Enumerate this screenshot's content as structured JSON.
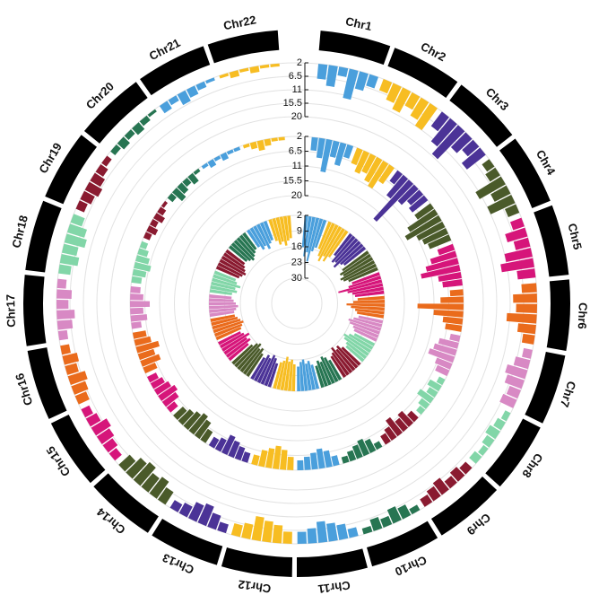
{
  "chart_data": {
    "type": "circular-manhattan",
    "chromosomes": [
      "Chr1",
      "Chr2",
      "Chr3",
      "Chr4",
      "Chr5",
      "Chr6",
      "Chr7",
      "Chr8",
      "Chr9",
      "Chr10",
      "Chr11",
      "Chr12",
      "Chr13",
      "Chr14",
      "Chr15",
      "Chr16",
      "Chr17",
      "Chr18",
      "Chr19",
      "Chr20",
      "Chr21",
      "Chr22"
    ],
    "colors": [
      "#4a9fdc",
      "#f7bd22",
      "#4b3397",
      "#4a5a2a",
      "#d6157a",
      "#ea6b1c",
      "#d889c4",
      "#82d6a8",
      "#8a1a30",
      "#277552",
      "#4a9fdc",
      "#f7bd22",
      "#4b3397",
      "#4a5a2a",
      "#d6157a",
      "#ea6b1c",
      "#d889c4",
      "#82d6a8",
      "#8a1a30",
      "#277552",
      "#4a9fdc",
      "#f7bd22"
    ],
    "grid": true,
    "rings": [
      {
        "ylim": [
          2,
          20
        ],
        "yticks": [
          2,
          6.5,
          11,
          15.5,
          20
        ],
        "values": [
          [
            7,
            9,
            5,
            12,
            8,
            6
          ],
          [
            6,
            8,
            10,
            7,
            9,
            11
          ],
          [
            8,
            12,
            15,
            9,
            7,
            10
          ],
          [
            5,
            6,
            12,
            8,
            11,
            6
          ],
          [
            6,
            9,
            7,
            11,
            13,
            8
          ],
          [
            7,
            10,
            9,
            12,
            8,
            6
          ],
          [
            5,
            7,
            9,
            8,
            6,
            7
          ],
          [
            4,
            5,
            6,
            5,
            4,
            5
          ],
          [
            5,
            6,
            5,
            7,
            6,
            5
          ],
          [
            4,
            6,
            7,
            5,
            6,
            4
          ],
          [
            5,
            7,
            8,
            9,
            7,
            6
          ],
          [
            6,
            8,
            9,
            10,
            7,
            6
          ],
          [
            5,
            7,
            9,
            8,
            6,
            5
          ],
          [
            7,
            9,
            8,
            10,
            9,
            7
          ],
          [
            5,
            6,
            7,
            8,
            6,
            5
          ],
          [
            6,
            7,
            8,
            6,
            7,
            5
          ],
          [
            5,
            7,
            8,
            6,
            7,
            5
          ],
          [
            6,
            8,
            7,
            9,
            8,
            6
          ],
          [
            5,
            6,
            7,
            6,
            5,
            4
          ],
          [
            4,
            5,
            4,
            5,
            4,
            3
          ],
          [
            5,
            4,
            6,
            5,
            4,
            3
          ],
          [
            3,
            4,
            3,
            4,
            3,
            3
          ]
        ]
      },
      {
        "ylim": [
          2,
          20
        ],
        "yticks": [
          2,
          6.5,
          11,
          15.5,
          20
        ],
        "values": [
          [
            6,
            8,
            12,
            7,
            9,
            6
          ],
          [
            7,
            9,
            8,
            10,
            11,
            8
          ],
          [
            6,
            10,
            18,
            9,
            7,
            8
          ],
          [
            8,
            12,
            14,
            11,
            10,
            9
          ],
          [
            7,
            10,
            12,
            14,
            9,
            8
          ],
          [
            6,
            9,
            16,
            11,
            8,
            7
          ],
          [
            5,
            8,
            9,
            10,
            7,
            6
          ],
          [
            4,
            6,
            5,
            7,
            5,
            4
          ],
          [
            5,
            7,
            6,
            8,
            6,
            5
          ],
          [
            4,
            6,
            7,
            6,
            5,
            4
          ],
          [
            5,
            7,
            8,
            7,
            6,
            5
          ],
          [
            6,
            8,
            9,
            8,
            7,
            5
          ],
          [
            5,
            6,
            7,
            8,
            6,
            5
          ],
          [
            6,
            8,
            9,
            8,
            7,
            6
          ],
          [
            5,
            7,
            8,
            7,
            6,
            5
          ],
          [
            6,
            8,
            7,
            9,
            7,
            6
          ],
          [
            5,
            7,
            6,
            8,
            6,
            5
          ],
          [
            5,
            6,
            7,
            6,
            5,
            4
          ],
          [
            4,
            5,
            4,
            5,
            4,
            3
          ],
          [
            4,
            6,
            5,
            4,
            5,
            3
          ],
          [
            3,
            4,
            3,
            4,
            3,
            3
          ],
          [
            3,
            4,
            5,
            4,
            3,
            3
          ]
        ]
      },
      {
        "ylim": [
          2,
          30
        ],
        "yticks": [
          2,
          9,
          16,
          23,
          30
        ],
        "values": [
          [
            16,
            20,
            18,
            22,
            17,
            15
          ],
          [
            15,
            18,
            20,
            17,
            19,
            16
          ],
          [
            14,
            17,
            16,
            18,
            15,
            14
          ],
          [
            16,
            18,
            17,
            19,
            18,
            16
          ],
          [
            15,
            17,
            22,
            18,
            16,
            15
          ],
          [
            14,
            16,
            19,
            17,
            15,
            14
          ],
          [
            13,
            15,
            17,
            16,
            14,
            13
          ],
          [
            12,
            14,
            16,
            15,
            13,
            12
          ],
          [
            13,
            15,
            14,
            16,
            14,
            13
          ],
          [
            12,
            14,
            15,
            13,
            14,
            12
          ],
          [
            13,
            15,
            14,
            16,
            15,
            13
          ],
          [
            14,
            16,
            15,
            17,
            15,
            14
          ],
          [
            13,
            15,
            16,
            14,
            15,
            13
          ],
          [
            14,
            16,
            15,
            17,
            16,
            14
          ],
          [
            13,
            15,
            14,
            16,
            14,
            13
          ],
          [
            14,
            15,
            16,
            15,
            14,
            13
          ],
          [
            13,
            14,
            15,
            14,
            13,
            12
          ],
          [
            12,
            14,
            13,
            15,
            13,
            12
          ],
          [
            13,
            14,
            15,
            14,
            13,
            12
          ],
          [
            12,
            13,
            14,
            13,
            12,
            11
          ],
          [
            11,
            13,
            12,
            14,
            12,
            11
          ],
          [
            12,
            14,
            13,
            15,
            13,
            12
          ]
        ]
      }
    ]
  }
}
